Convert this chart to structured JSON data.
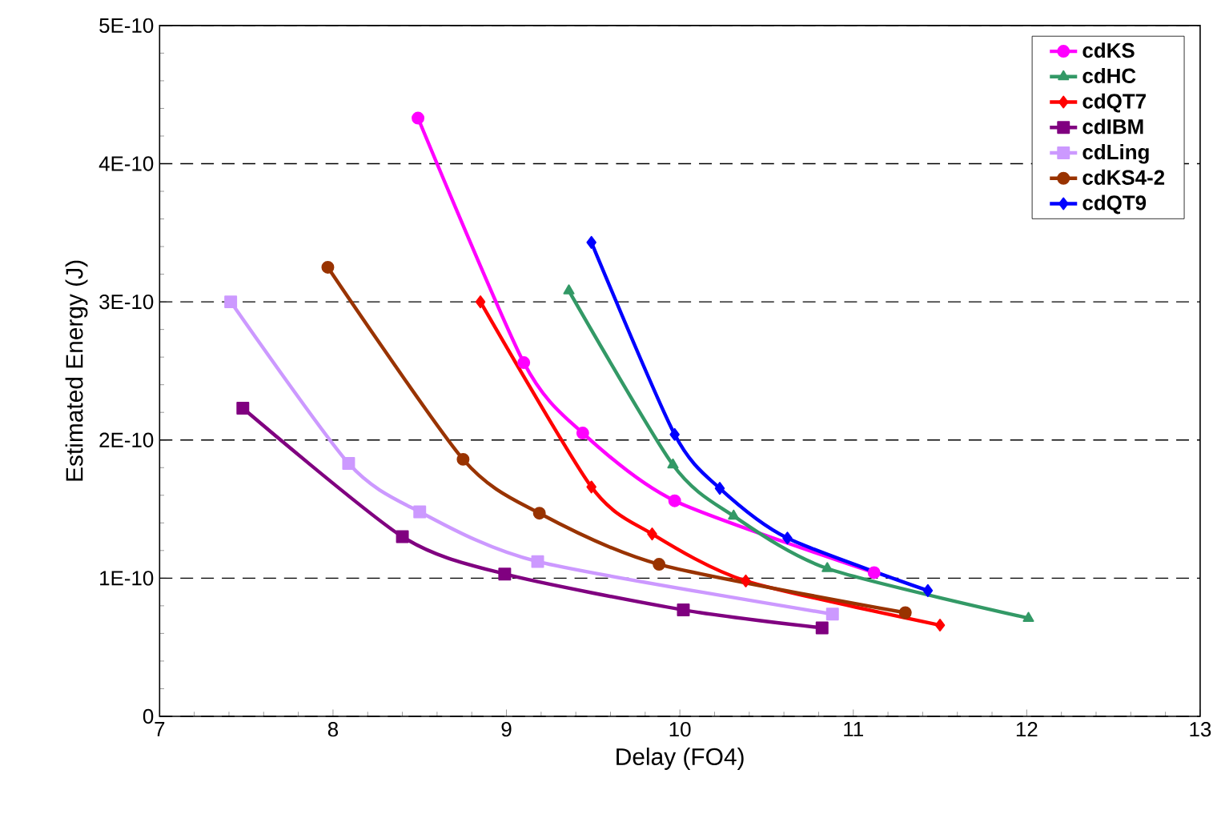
{
  "chart_data": {
    "type": "line",
    "xlabel": "Delay (FO4)",
    "ylabel": "Estimated Energy (J)",
    "xlim": [
      7,
      13
    ],
    "xticks": [
      7,
      8,
      9,
      10,
      11,
      12,
      13
    ],
    "ylim": [
      0,
      5e-10
    ],
    "yticks": [
      0,
      {
        "value": 1e-10,
        "label": "1E-10"
      },
      {
        "value": 2e-10,
        "label": "2E-10"
      },
      {
        "value": 3e-10,
        "label": "3E-10"
      },
      {
        "value": 4e-10,
        "label": "4E-10"
      },
      {
        "value": 5e-10,
        "label": "5E-10"
      }
    ],
    "grid": "y",
    "legend": "top right",
    "line_style": "solid",
    "series": [
      {
        "name": "cdKS",
        "color": "#ff00ff",
        "marker": "circle",
        "x": [
          8.49,
          9.1,
          9.44,
          9.97,
          11.12
        ],
        "values": [
          4.33e-10,
          2.56e-10,
          2.05e-10,
          1.56e-10,
          1.04e-10
        ]
      },
      {
        "name": "cdHC",
        "color": "#339966",
        "marker": "triangle",
        "x": [
          9.36,
          9.96,
          10.31,
          10.85,
          12.01
        ],
        "values": [
          3.08e-10,
          1.82e-10,
          1.45e-10,
          1.07e-10,
          7.1e-11
        ]
      },
      {
        "name": "cdQT7",
        "color": "#ff0000",
        "marker": "diamond",
        "x": [
          8.85,
          9.49,
          9.84,
          10.38,
          11.5
        ],
        "values": [
          3e-10,
          1.66e-10,
          1.32e-10,
          9.8e-11,
          6.6e-11
        ]
      },
      {
        "name": "cdIBM",
        "color": "#800080",
        "marker": "square",
        "x": [
          7.48,
          8.4,
          8.99,
          10.02,
          10.82
        ],
        "values": [
          2.23e-10,
          1.3e-10,
          1.03e-10,
          7.7e-11,
          6.4e-11
        ]
      },
      {
        "name": "cdLing",
        "color": "#cc99ff",
        "marker": "square",
        "x": [
          7.41,
          8.09,
          8.5,
          9.18,
          10.88
        ],
        "values": [
          3e-10,
          1.83e-10,
          1.48e-10,
          1.12e-10,
          7.4e-11
        ]
      },
      {
        "name": "cdKS4-2",
        "color": "#993300",
        "marker": "circle",
        "x": [
          7.97,
          8.75,
          9.19,
          9.88,
          11.3
        ],
        "values": [
          3.25e-10,
          1.86e-10,
          1.47e-10,
          1.1e-10,
          7.5e-11
        ]
      },
      {
        "name": "cdQT9",
        "color": "#0000ff",
        "marker": "diamond",
        "x": [
          9.49,
          9.97,
          10.23,
          10.62,
          11.43
        ],
        "values": [
          3.43e-10,
          2.04e-10,
          1.65e-10,
          1.29e-10,
          9.1e-11
        ]
      }
    ]
  }
}
